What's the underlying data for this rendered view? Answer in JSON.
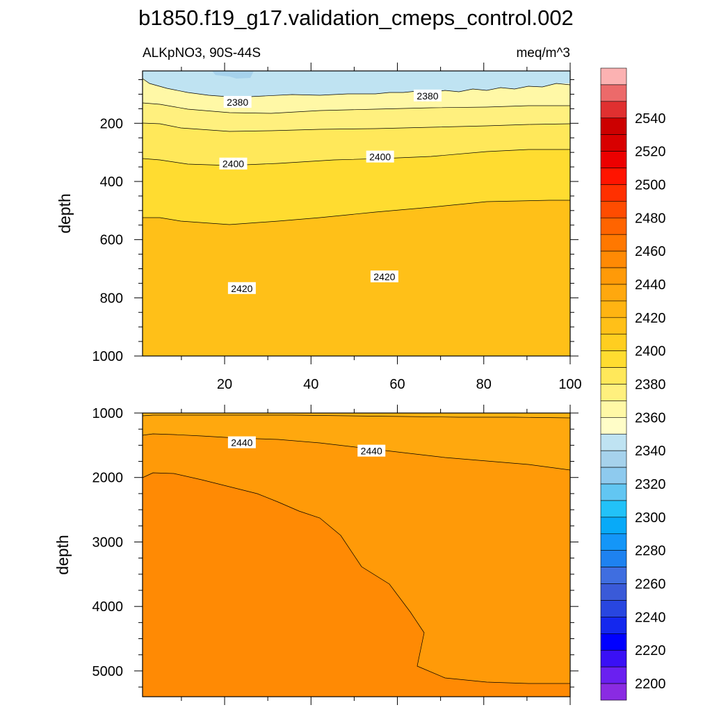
{
  "chart_data": {
    "type": "contour",
    "title": "b1850.f19_g17.validation_cmeps_control.002",
    "left_subtitle": "ALKpNO3, 90S-44S",
    "right_subtitle": "meq/m^3",
    "colorbar": {
      "levels": [
        2200,
        2220,
        2240,
        2260,
        2280,
        2300,
        2320,
        2340,
        2360,
        2380,
        2400,
        2420,
        2440,
        2460,
        2480,
        2500,
        2520,
        2540
      ],
      "labels": [
        "2200",
        "2220",
        "2240",
        "2260",
        "2280",
        "2300",
        "2320",
        "2340",
        "2360",
        "2380",
        "2400",
        "2420",
        "2440",
        "2460",
        "2480",
        "2500",
        "2520",
        "2540"
      ],
      "colors": [
        "#8a2be2",
        "#6a20f0",
        "#3a10f5",
        "#0000ff",
        "#1428ee",
        "#2846e0",
        "#3a5ad8",
        "#3f6ee0",
        "#1e82f0",
        "#1496f8",
        "#08aaf8",
        "#22c2f8",
        "#62c6f2",
        "#8ecaee",
        "#a6d2ec",
        "#bfe3f2",
        "#fffdc8",
        "#fff8a6",
        "#fff07e",
        "#ffe85a",
        "#ffdc30",
        "#ffce20",
        "#ffc018",
        "#ffb412",
        "#ffa80e",
        "#ff9a08",
        "#ff8a04",
        "#ff7800",
        "#ff6400",
        "#ff4c00",
        "#ff3000",
        "#ff1400",
        "#ec0000",
        "#d80000",
        "#cc0000",
        "#e03030",
        "#ec6a6a",
        "#fcb2b2"
      ]
    },
    "panels": [
      {
        "name": "upper",
        "ylabel": "depth",
        "x_range": [
          1,
          100
        ],
        "y_range": [
          1000,
          20
        ],
        "x_ticks": [
          20,
          40,
          60,
          80,
          100
        ],
        "x_tick_labels": [
          "20",
          "40",
          "60",
          "80",
          "100"
        ],
        "y_ticks": [
          200,
          400,
          600,
          800,
          1000
        ],
        "y_tick_labels": [
          "200",
          "400",
          "600",
          "800",
          "1000"
        ],
        "contour_labels": [
          {
            "text": "2380",
            "x": 23,
            "y": 130
          },
          {
            "text": "2380",
            "x": 67,
            "y": 108
          },
          {
            "text": "2400",
            "x": 22,
            "y": 342
          },
          {
            "text": "2400",
            "x": 56,
            "y": 318
          },
          {
            "text": "2420",
            "x": 24,
            "y": 770
          },
          {
            "text": "2420",
            "x": 57,
            "y": 730
          }
        ]
      },
      {
        "name": "lower",
        "ylabel": "depth",
        "x_range": [
          1,
          100
        ],
        "y_range": [
          5400,
          1000
        ],
        "y_ticks": [
          1000,
          2000,
          3000,
          4000,
          5000
        ],
        "y_tick_labels": [
          "1000",
          "2000",
          "3000",
          "4000",
          "5000"
        ],
        "contour_labels": [
          {
            "text": "2440",
            "x": 24,
            "y": 1470
          },
          {
            "text": "2440",
            "x": 54,
            "y": 1600
          }
        ]
      }
    ]
  }
}
